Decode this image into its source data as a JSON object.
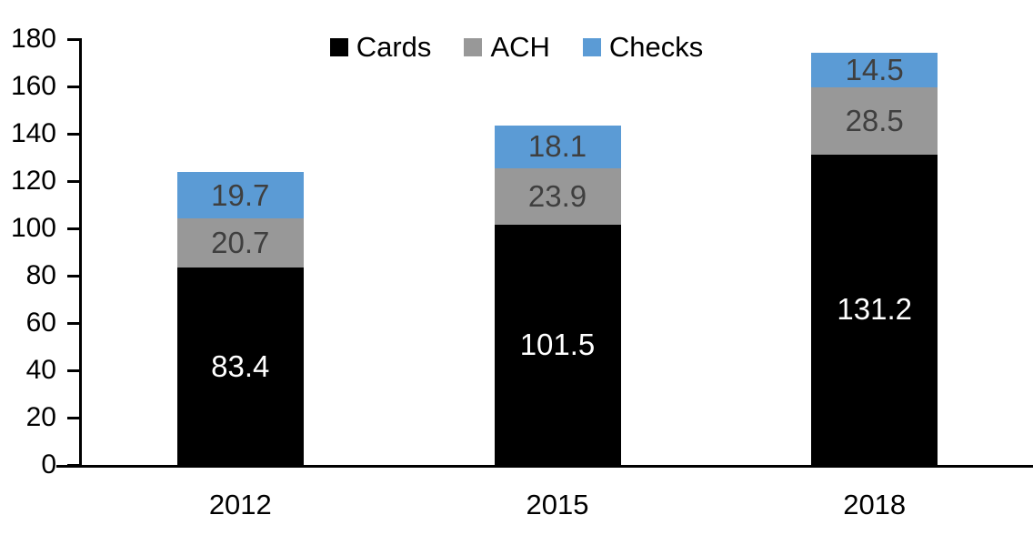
{
  "chart_data": {
    "type": "bar",
    "stacked": true,
    "title": "",
    "categories": [
      "2012",
      "2015",
      "2018"
    ],
    "series": [
      {
        "name": "Cards",
        "color": "#000000",
        "label_color": "#FFFFFF",
        "values": [
          83.4,
          101.5,
          131.2
        ]
      },
      {
        "name": "ACH",
        "color": "#989898",
        "label_color": "#3F3F3F",
        "values": [
          20.7,
          23.9,
          28.5
        ]
      },
      {
        "name": "Checks",
        "color": "#5B9BD5",
        "label_color": "#3F3F3F",
        "values": [
          19.7,
          18.1,
          14.5
        ]
      }
    ],
    "totals": [
      123.8,
      143.5,
      174.2
    ],
    "ylim": [
      0,
      180
    ],
    "ytick_interval": 20,
    "ytick_labels": [
      "0",
      "20",
      "40",
      "60",
      "80",
      "100",
      "120",
      "140",
      "160",
      "180"
    ],
    "xlabel": "",
    "ylabel": "",
    "grid": false,
    "legend_position": "top",
    "legend_labels": [
      "Cards",
      "ACH",
      "Checks"
    ],
    "axis_color": "#000000",
    "background_color": "#FFFFFF"
  }
}
